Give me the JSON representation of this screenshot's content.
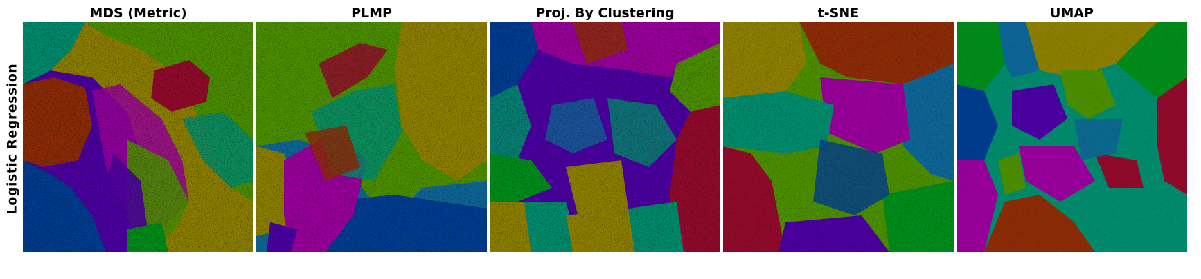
{
  "figure": {
    "row_label": "Logistic Regression",
    "panels": [
      {
        "title": "MDS (Metric)"
      },
      {
        "title": "PLMP"
      },
      {
        "title": "Proj. By Clustering"
      },
      {
        "title": "t-SNE"
      },
      {
        "title": "UMAP"
      }
    ]
  },
  "palette": {
    "navy": "#003b8e",
    "red": "#8f0a2a",
    "brown": "#8a2a06",
    "olive": "#8a7d00",
    "green": "#4a8c00",
    "darkgreen": "#008a1a",
    "teal": "#00896a",
    "blue": "#0d6494",
    "purple": "#4a009e",
    "magenta": "#960098"
  }
}
